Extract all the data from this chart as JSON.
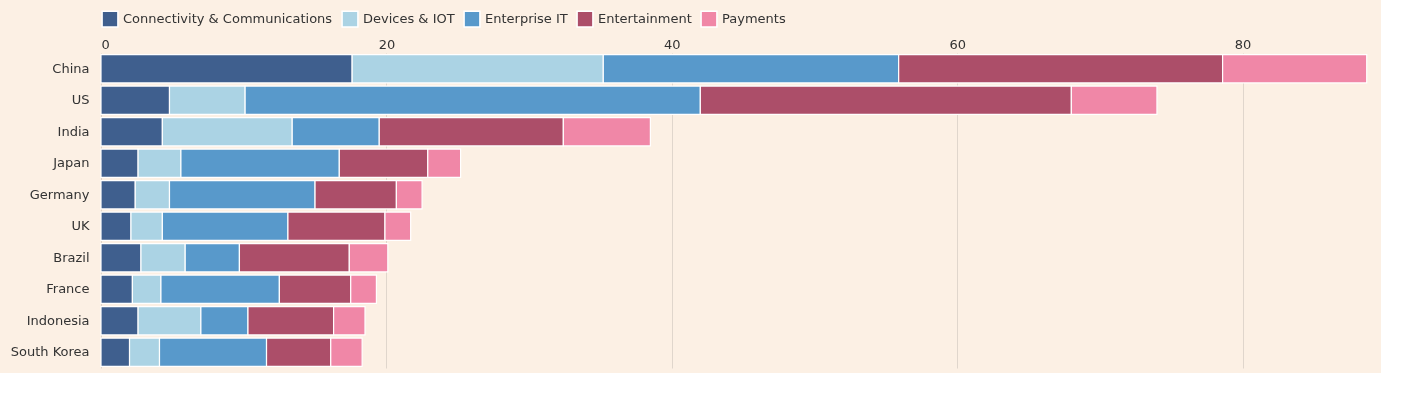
{
  "chart_data": {
    "type": "bar",
    "orientation": "horizontal",
    "stacked": true,
    "categories": [
      "China",
      "US",
      "India",
      "Japan",
      "Germany",
      "UK",
      "Brazil",
      "France",
      "Indonesia",
      "South Korea"
    ],
    "series": [
      {
        "name": "Connectivity & Communications",
        "color": "#3f5f8e",
        "values": [
          17.6,
          4.8,
          4.3,
          2.6,
          2.4,
          2.1,
          2.8,
          2.2,
          2.6,
          2.0
        ]
      },
      {
        "name": "Devices & IOT",
        "color": "#abd3e4",
        "values": [
          17.6,
          5.3,
          9.1,
          3.0,
          2.4,
          2.2,
          3.1,
          2.0,
          4.4,
          2.1
        ]
      },
      {
        "name": "Enterprise IT",
        "color": "#5899cb",
        "values": [
          20.7,
          31.9,
          6.1,
          11.1,
          10.2,
          8.8,
          3.8,
          8.3,
          3.3,
          7.5
        ]
      },
      {
        "name": "Entertainment",
        "color": "#ac4e69",
        "values": [
          22.7,
          26.0,
          12.9,
          6.2,
          5.7,
          6.8,
          7.7,
          5.0,
          6.0,
          4.5
        ]
      },
      {
        "name": "Payments",
        "color": "#f087a7",
        "values": [
          10.1,
          6.0,
          6.1,
          2.3,
          1.8,
          1.8,
          2.7,
          1.8,
          2.2,
          2.2
        ]
      }
    ],
    "xlim": [
      0,
      89
    ],
    "xticks": [
      0,
      20,
      40,
      60,
      80
    ],
    "grid": "x",
    "legend": "top left"
  }
}
